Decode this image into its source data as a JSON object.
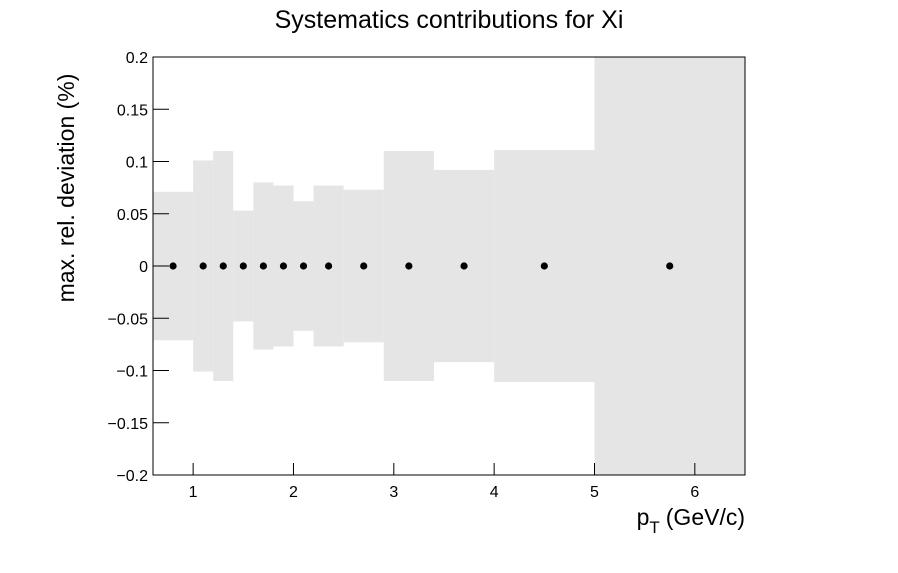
{
  "chart_data": {
    "type": "scatter",
    "title": "Systematics contributions for Xi",
    "ylabel": "max. rel. deviation (%)",
    "xlabel": {
      "base": "p",
      "sub": "T",
      "rest": "(GeV/c)"
    },
    "bins": [
      0.6,
      1.0,
      1.2,
      1.4,
      1.6,
      1.8,
      2.0,
      2.2,
      2.5,
      2.9,
      3.4,
      4.0,
      5.0,
      6.5
    ],
    "x": [
      0.8,
      1.1,
      1.3,
      1.5,
      1.7,
      1.9,
      2.1,
      2.35,
      2.7,
      3.15,
      3.7,
      4.5,
      5.75
    ],
    "values": [
      0,
      0,
      0,
      0,
      0,
      0,
      0,
      0,
      0,
      0,
      0,
      0,
      0
    ],
    "errors": [
      0.071,
      0.101,
      0.11,
      0.053,
      0.08,
      0.077,
      0.062,
      0.077,
      0.073,
      0.11,
      0.092,
      0.111,
      0.2
    ],
    "band_color": "#e5e5e5",
    "color": "#000000",
    "xlim": [
      0.6,
      6.5
    ],
    "ylim": [
      -0.2,
      0.2
    ],
    "xticks": [
      1,
      2,
      3,
      4,
      5,
      6
    ],
    "yticks": [
      {
        "value": -0.2,
        "label": "−0.2"
      },
      {
        "value": -0.15,
        "label": "−0.15"
      },
      {
        "value": -0.1,
        "label": "−0.1"
      },
      {
        "value": -0.05,
        "label": "−0.05"
      },
      0,
      0.05,
      0.1,
      0.15,
      0.2
    ]
  }
}
